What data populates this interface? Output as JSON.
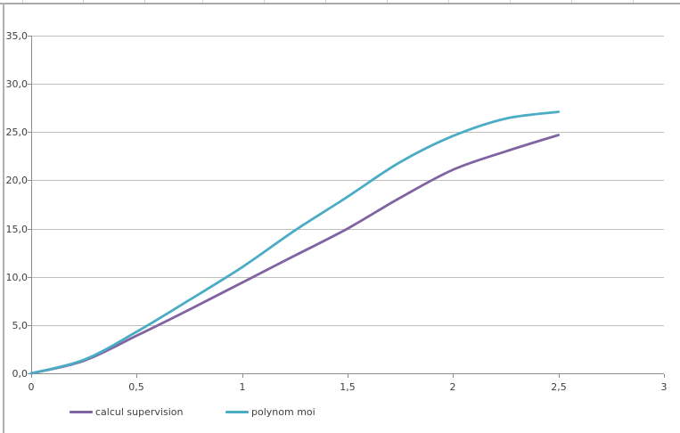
{
  "chart_data": {
    "type": "line",
    "title": "",
    "xlabel": "",
    "ylabel": "",
    "xlim": [
      0,
      3
    ],
    "ylim": [
      0,
      35
    ],
    "grid": "horizontal",
    "legend_position": "bottom",
    "x": [
      0,
      0.25,
      0.5,
      0.75,
      1.0,
      1.25,
      1.5,
      1.75,
      2.0,
      2.25,
      2.5
    ],
    "series": [
      {
        "name": "calcul supervision",
        "color": "#8064A2",
        "values": [
          0.0,
          1.3,
          3.9,
          6.6,
          9.4,
          12.2,
          15.0,
          18.2,
          21.1,
          23.0,
          24.7
        ]
      },
      {
        "name": "polynom moi",
        "color": "#4BACC6",
        "values": [
          0.0,
          1.4,
          4.3,
          7.6,
          11.0,
          14.8,
          18.3,
          21.9,
          24.6,
          26.4,
          27.1
        ]
      }
    ],
    "xticks": {
      "values": [
        0,
        0.5,
        1,
        1.5,
        2,
        2.5,
        3
      ],
      "labels": [
        "0",
        "0,5",
        "1",
        "1,5",
        "2",
        "2,5",
        "3"
      ]
    },
    "yticks": {
      "values": [
        0,
        5,
        10,
        15,
        20,
        25,
        30,
        35
      ],
      "labels": [
        "0,0",
        "5,0",
        "10,0",
        "15,0",
        "20,0",
        "25,0",
        "30,0",
        "35,0"
      ]
    },
    "colors": {
      "gridline": "#BFBFBF",
      "axis": "#8C8C8C",
      "tick_text": "#3F3F3F"
    }
  }
}
